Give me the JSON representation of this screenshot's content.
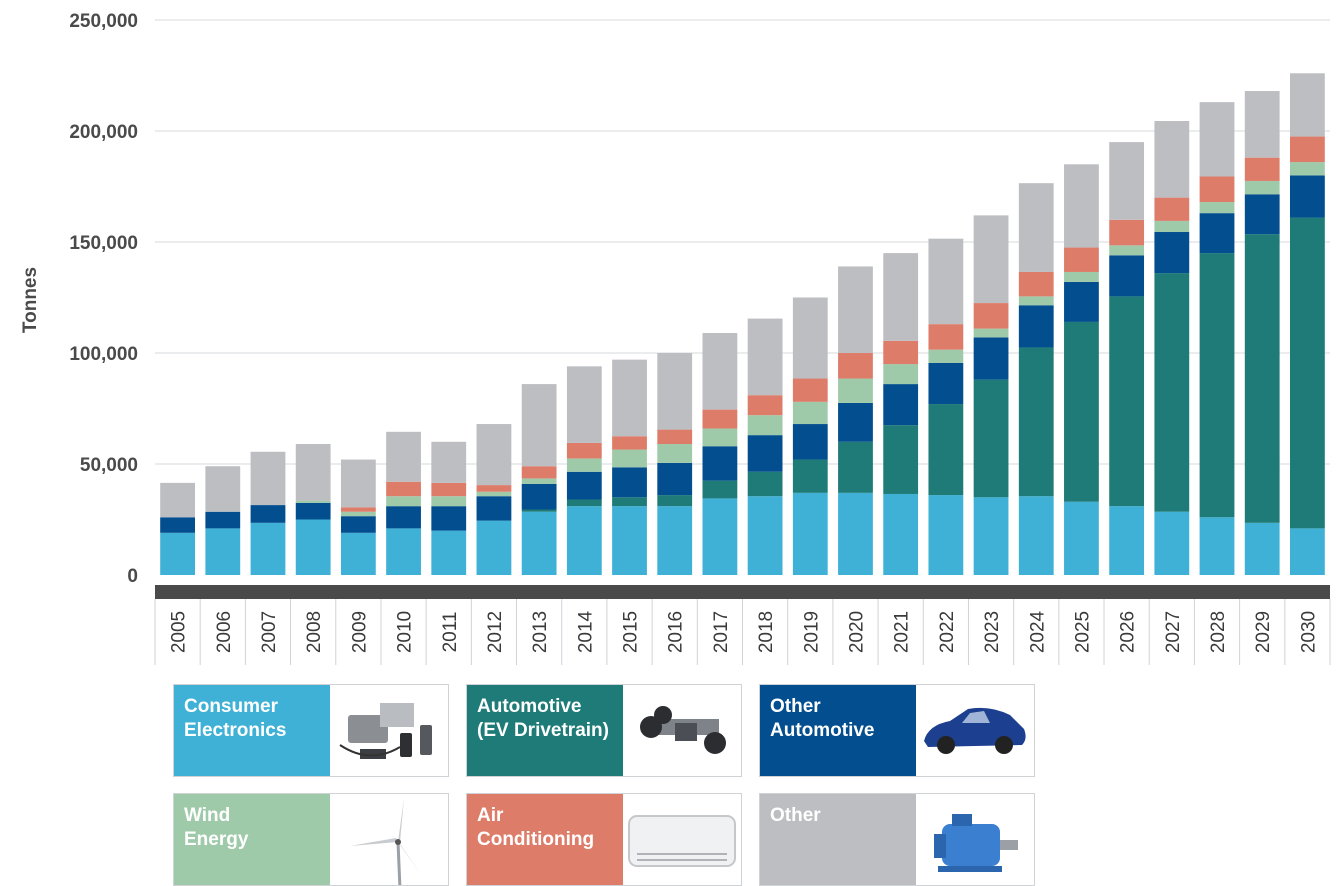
{
  "chart_data": {
    "type": "bar",
    "stacked": true,
    "ylabel": "Tonnes",
    "xlabel": "",
    "ylim": [
      0,
      250000
    ],
    "yticks": [
      "0",
      "50,000",
      "100,000",
      "150,000",
      "200,000",
      "250,000"
    ],
    "grid": true,
    "legend_position": "bottom",
    "categories": [
      "2005",
      "2006",
      "2007",
      "2008",
      "2009",
      "2010",
      "2011",
      "2012",
      "2013",
      "2014",
      "2015",
      "2016",
      "2017",
      "2018",
      "2019",
      "2020",
      "2021",
      "2022",
      "2023",
      "2024",
      "2025",
      "2026",
      "2027",
      "2028",
      "2029",
      "2030"
    ],
    "series": [
      {
        "name": "Consumer\nElectronics",
        "color": "#3fb1d6",
        "icon": "electronics-icon",
        "values": [
          19000,
          21000,
          23500,
          25000,
          19000,
          21000,
          20000,
          24500,
          28500,
          31000,
          31000,
          31000,
          34500,
          35500,
          37000,
          37000,
          36500,
          36000,
          35000,
          35500,
          33000,
          31000,
          28500,
          26000,
          23500,
          21000
        ]
      },
      {
        "name": "Automotive\n(EV Drivetrain)",
        "color": "#1e7b77",
        "icon": "ev-drivetrain-icon",
        "values": [
          0,
          0,
          0,
          0,
          0,
          0,
          0,
          0,
          1000,
          3000,
          4000,
          5000,
          8000,
          11000,
          15000,
          23000,
          31000,
          41000,
          53000,
          67000,
          81000,
          94500,
          107500,
          119000,
          130000,
          140000
        ]
      },
      {
        "name": "Other\nAutomotive",
        "color": "#034e8f",
        "icon": "car-icon",
        "values": [
          7000,
          7500,
          8000,
          7500,
          7500,
          10000,
          11000,
          11000,
          11500,
          12500,
          13500,
          14500,
          15500,
          16500,
          16000,
          17500,
          18500,
          18500,
          19000,
          19000,
          18000,
          18500,
          18500,
          18000,
          18000,
          19000
        ]
      },
      {
        "name": "Wind\nEnergy",
        "color": "#9fcaaa",
        "icon": "wind-turbine-icon",
        "values": [
          0,
          0,
          0,
          1000,
          2000,
          4500,
          4500,
          2000,
          2500,
          6000,
          8000,
          8500,
          8000,
          9000,
          10000,
          11000,
          9000,
          6000,
          4000,
          4000,
          4500,
          4500,
          5000,
          5000,
          6000,
          6000
        ]
      },
      {
        "name": "Air\nConditioning",
        "color": "#de7c6a",
        "icon": "air-conditioner-icon",
        "values": [
          0,
          0,
          0,
          0,
          2000,
          6500,
          6000,
          3000,
          5500,
          7000,
          6000,
          6500,
          8500,
          9000,
          10500,
          11500,
          10500,
          11500,
          11500,
          11000,
          11000,
          11500,
          10500,
          11500,
          10500,
          11500
        ]
      },
      {
        "name": "Other",
        "color": "#bdbec2",
        "icon": "motor-icon",
        "values": [
          15500,
          20500,
          24000,
          25500,
          21500,
          22500,
          18500,
          27500,
          37000,
          34500,
          34500,
          34500,
          34500,
          34500,
          36500,
          39000,
          39500,
          38500,
          39500,
          40000,
          37500,
          35000,
          34500,
          33500,
          30000,
          28500
        ]
      }
    ]
  }
}
